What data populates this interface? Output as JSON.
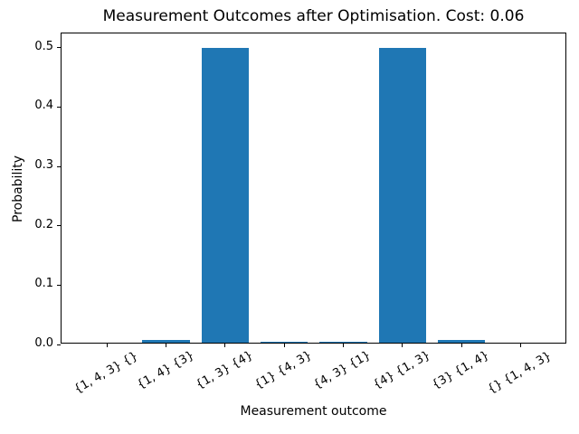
{
  "chart_data": {
    "type": "bar",
    "title": "Measurement Outcomes after Optimisation. Cost: 0.06",
    "xlabel": "Measurement outcome",
    "ylabel": "Probability",
    "categories": [
      "{1, 4, 3} {}",
      "{1, 4} {3}",
      "{1, 3} {4}",
      "{1} {4, 3}",
      "{4, 3} {1}",
      "{4} {1, 3}",
      "{3} {1, 4}",
      "{} {1, 4, 3}"
    ],
    "values": [
      0.0,
      0.004,
      0.497,
      0.002,
      0.002,
      0.497,
      0.004,
      0.0
    ],
    "yticks": [
      "0.0",
      "0.1",
      "0.2",
      "0.3",
      "0.4",
      "0.5"
    ],
    "ylim": [
      0,
      0.524
    ],
    "xlim": [
      -0.77,
      7.79
    ],
    "bar_color": "#1f77b4",
    "bar_width_frac": 0.8,
    "grid": false,
    "legend": "none",
    "tick_rotation_deg": 30
  }
}
